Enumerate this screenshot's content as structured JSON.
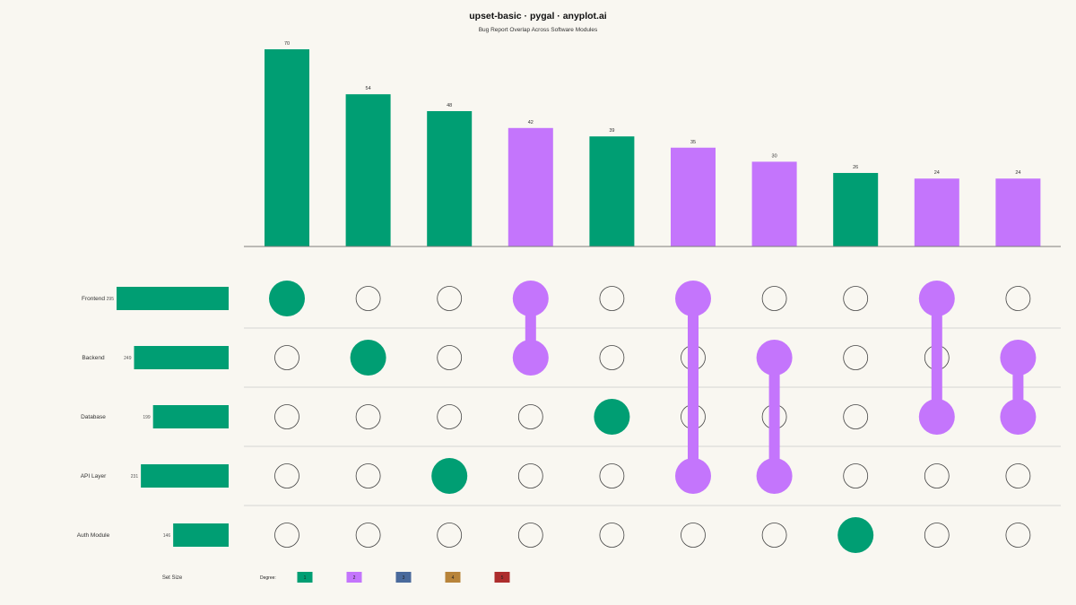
{
  "title": "upset-basic · pygal · anyplot.ai",
  "subtitle": "Bug Report Overlap Across Software Modules",
  "set_size_label": "Set Size",
  "degree_label": "Degree:",
  "colors": {
    "degree_1": "#009e73",
    "degree_2": "#c475fc",
    "degree_3": "#4a6a9c",
    "degree_4": "#b8843a",
    "degree_5": "#ad2d2d",
    "background": "#f9f7f1"
  },
  "chart_data": {
    "type": "upset",
    "sets": [
      {
        "name": "Frontend",
        "size": 295
      },
      {
        "name": "Backend",
        "size": 249
      },
      {
        "name": "Database",
        "size": 199
      },
      {
        "name": "API Layer",
        "size": 231
      },
      {
        "name": "Auth Module",
        "size": 146
      }
    ],
    "intersections": [
      {
        "sets": [
          "Frontend"
        ],
        "value": 70,
        "degree": 1
      },
      {
        "sets": [
          "Backend"
        ],
        "value": 54,
        "degree": 1
      },
      {
        "sets": [
          "API Layer"
        ],
        "value": 48,
        "degree": 1
      },
      {
        "sets": [
          "Frontend",
          "Backend"
        ],
        "value": 42,
        "degree": 2
      },
      {
        "sets": [
          "Database"
        ],
        "value": 39,
        "degree": 1
      },
      {
        "sets": [
          "Frontend",
          "API Layer"
        ],
        "value": 35,
        "degree": 2
      },
      {
        "sets": [
          "Backend",
          "API Layer"
        ],
        "value": 30,
        "degree": 2
      },
      {
        "sets": [
          "Auth Module"
        ],
        "value": 26,
        "degree": 1
      },
      {
        "sets": [
          "Frontend",
          "Database"
        ],
        "value": 24,
        "degree": 2
      },
      {
        "sets": [
          "Backend",
          "Database"
        ],
        "value": 24,
        "degree": 2
      }
    ],
    "legend": [
      {
        "label": "1",
        "degree": 1
      },
      {
        "label": "2",
        "degree": 2
      },
      {
        "label": "3",
        "degree": 3
      },
      {
        "label": "4",
        "degree": 4
      },
      {
        "label": "5",
        "degree": 5
      }
    ]
  }
}
